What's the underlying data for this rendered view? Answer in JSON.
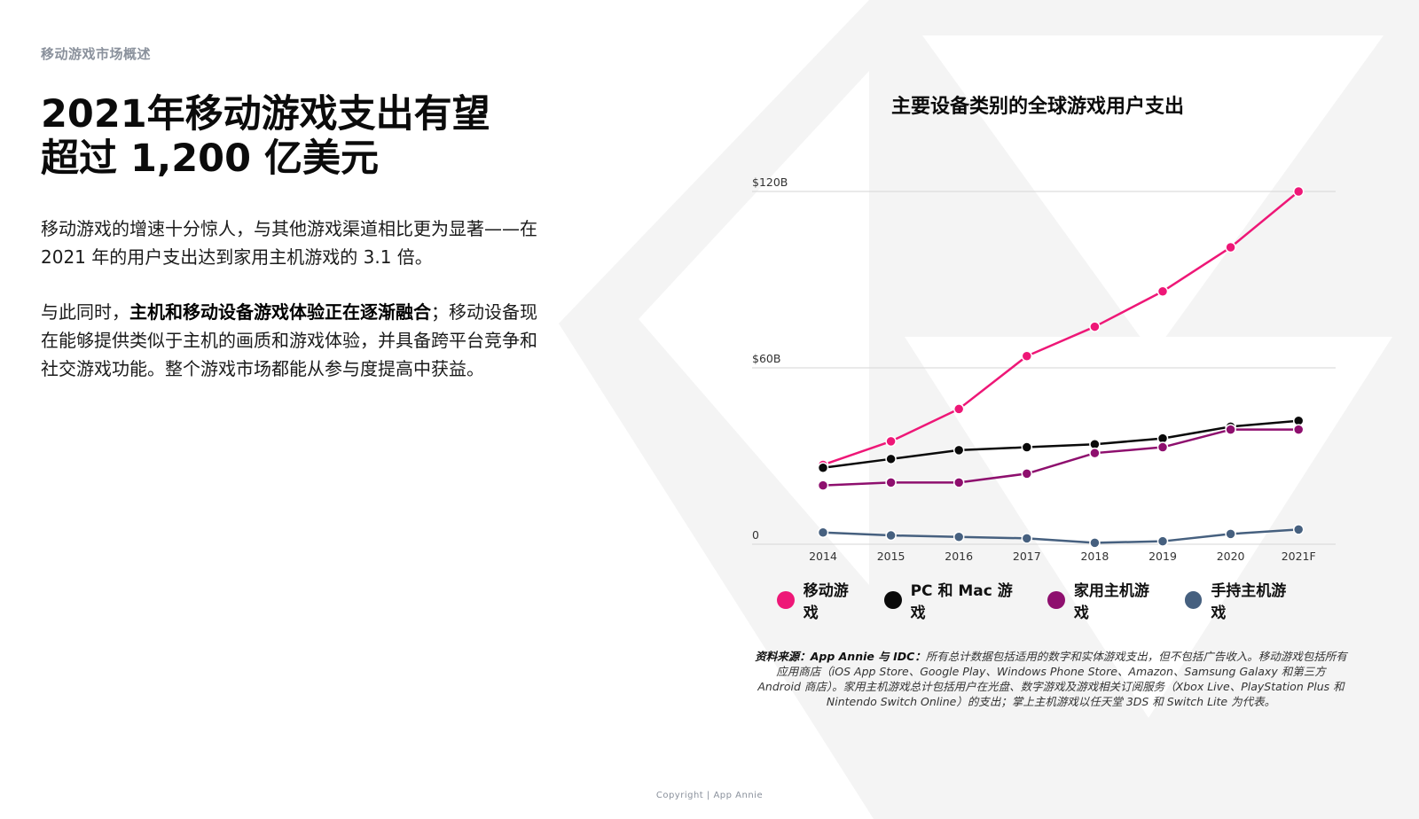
{
  "section_label": "移动游戏市场概述",
  "headline": {
    "line1": "2021年移动游戏支出有望",
    "line2": "超过 1,200 亿美元"
  },
  "paragraph1": "移动游戏的增速十分惊人，与其他游戏渠道相比更为显著——在 2021 年的用户支出达到家用主机游戏的 3.1 倍。",
  "paragraph2": {
    "prefix": "与此同时，",
    "emphasis": "主机和移动设备游戏体验正在逐渐融合",
    "suffix": "；移动设备现在能够提供类似于主机的画质和游戏体验，并具备跨平台竞争和社交游戏功能。整个游戏市场都能从参与度提高中获益。"
  },
  "chart_data": {
    "type": "line",
    "title": "主要设备类别的全球游戏用户支出",
    "categories": [
      "2014",
      "2015",
      "2016",
      "2017",
      "2018",
      "2019",
      "2020",
      "2021F"
    ],
    "y_ticks": [
      {
        "value": 0,
        "label": "0"
      },
      {
        "value": 60,
        "label": "$60B"
      },
      {
        "value": 120,
        "label": "$120B"
      }
    ],
    "ylim": [
      0,
      120
    ],
    "grid": true,
    "legend_position": "bottom",
    "series": [
      {
        "name": "移动游戏",
        "color": "#ee1777",
        "values": [
          27,
          35,
          46,
          64,
          74,
          86,
          101,
          120
        ]
      },
      {
        "name": "PC 和 Mac 游戏",
        "color": "#0a0a0a",
        "values": [
          26,
          29,
          32,
          33,
          34,
          36,
          40,
          42
        ]
      },
      {
        "name": "家用主机游戏",
        "color": "#8e0f6e",
        "values": [
          20,
          21,
          21,
          24,
          31,
          33,
          39,
          39
        ]
      },
      {
        "name": "手持主机游戏",
        "color": "#46607f",
        "values": [
          4,
          3,
          2.5,
          2,
          0.5,
          1,
          3.5,
          5
        ]
      }
    ]
  },
  "source": {
    "label": "资料来源：App Annie 与 IDC：",
    "text": "所有总计数据包括适用的数字和实体游戏支出，但不包括广告收入。移动游戏包括所有应用商店（iOS App Store、Google Play、Windows Phone Store、Amazon、Samsung Galaxy 和第三方 Android 商店）。家用主机游戏总计包括用户在光盘、数字游戏及游戏相关订阅服务（Xbox Live、PlayStation Plus 和 Nintendo Switch Online）的支出；掌上主机游戏以任天堂 3DS 和 Switch Lite 为代表。"
  },
  "copyright": "Copyright | App Annie"
}
